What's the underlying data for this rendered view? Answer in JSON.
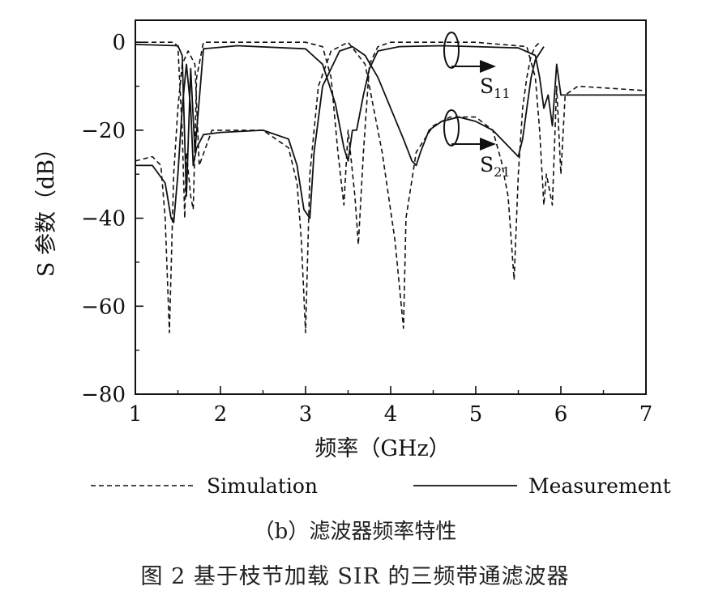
{
  "chart_data": {
    "type": "line",
    "xlabel": "频率（GHz）",
    "ylabel": "S 参数（dB）",
    "xlim": [
      1,
      7
    ],
    "ylim": [
      -80,
      5
    ],
    "xticks": [
      1,
      2,
      3,
      4,
      5,
      6,
      7
    ],
    "yticks": [
      0,
      -20,
      -40,
      -60,
      -80
    ],
    "grid": false,
    "legend_position": "bottom",
    "legend": [
      {
        "label": "Simulation",
        "style": "dashed"
      },
      {
        "label": "Measurement",
        "style": "solid"
      }
    ],
    "annotations": [
      {
        "text": "S",
        "sub": "11",
        "target": "S11"
      },
      {
        "text": "S",
        "sub": "21",
        "target": "S21"
      }
    ],
    "series": [
      {
        "name": "S11 Simulation",
        "style": "dashed",
        "x": [
          1.0,
          1.45,
          1.5,
          1.55,
          1.58,
          1.6,
          1.65,
          1.68,
          1.72,
          1.8,
          2.2,
          3.0,
          3.2,
          3.3,
          3.38,
          3.45,
          3.5,
          3.58,
          3.62,
          3.68,
          3.75,
          3.85,
          4.0,
          5.0,
          5.6,
          5.7,
          5.75,
          5.8,
          5.83,
          5.9,
          5.95,
          6.0,
          6.05,
          6.2,
          7.0
        ],
        "y": [
          0,
          0,
          -1,
          -20,
          -40,
          -25,
          -35,
          -38,
          -8,
          0,
          0,
          0,
          -1,
          -8,
          -25,
          -37,
          -20,
          -35,
          -46,
          -25,
          -5,
          -1,
          0,
          0,
          -1,
          -8,
          -20,
          -37,
          -30,
          -37,
          -10,
          -30,
          -12,
          -10,
          -11
        ]
      },
      {
        "name": "S11 Measurement",
        "style": "solid",
        "x": [
          1.0,
          1.5,
          1.55,
          1.6,
          1.65,
          1.7,
          1.8,
          2.2,
          3.0,
          3.2,
          3.35,
          3.45,
          3.5,
          3.55,
          3.6,
          3.68,
          3.75,
          3.85,
          4.1,
          4.6,
          5.0,
          5.5,
          5.7,
          5.75,
          5.8,
          5.85,
          5.9,
          5.95,
          6.0,
          6.2,
          7.0
        ],
        "y": [
          -0.5,
          -0.8,
          -3,
          -35,
          -6,
          -25,
          -1.5,
          -0.8,
          -1.5,
          -5,
          -14,
          -24,
          -27,
          -20,
          -20,
          -12,
          -6,
          -2,
          -1,
          -0.8,
          -1,
          -1.3,
          -3,
          -8,
          -15,
          -12,
          -19,
          -5,
          -12,
          -12,
          -12
        ]
      },
      {
        "name": "S21 Simulation",
        "style": "dashed",
        "x": [
          1.0,
          1.2,
          1.3,
          1.35,
          1.4,
          1.45,
          1.5,
          1.55,
          1.62,
          1.7,
          1.75,
          1.9,
          2.2,
          2.5,
          2.8,
          2.9,
          2.95,
          3.0,
          3.05,
          3.15,
          3.3,
          3.5,
          3.7,
          3.9,
          4.05,
          4.15,
          4.18,
          4.3,
          4.5,
          4.7,
          5.0,
          5.2,
          5.3,
          5.38,
          5.45,
          5.5,
          5.55,
          5.6,
          5.65,
          5.7,
          5.75
        ],
        "y": [
          -27,
          -26,
          -28,
          -40,
          -66,
          -30,
          -15,
          -5,
          -2,
          -5,
          -28,
          -20,
          -20,
          -20,
          -24,
          -32,
          -45,
          -66,
          -30,
          -10,
          -2,
          0,
          -5,
          -25,
          -45,
          -65,
          -40,
          -25,
          -19,
          -17,
          -17,
          -20,
          -27,
          -35,
          -54,
          -30,
          -15,
          -8,
          -3,
          -1,
          0
        ]
      },
      {
        "name": "S21 Measurement",
        "style": "solid",
        "x": [
          1.0,
          1.2,
          1.35,
          1.42,
          1.45,
          1.5,
          1.55,
          1.6,
          1.65,
          1.68,
          1.72,
          1.8,
          2.0,
          2.5,
          2.8,
          2.9,
          2.98,
          3.05,
          3.1,
          3.2,
          3.4,
          3.55,
          3.7,
          3.85,
          4.0,
          4.15,
          4.25,
          4.3,
          4.35,
          4.45,
          4.6,
          4.8,
          5.0,
          5.2,
          5.4,
          5.5,
          5.55,
          5.6,
          5.65,
          5.7,
          5.8
        ],
        "y": [
          -28,
          -28,
          -32,
          -40,
          -41,
          -30,
          -15,
          -5,
          -15,
          -28,
          -24,
          -21,
          -20.5,
          -20,
          -22,
          -28,
          -38,
          -40,
          -25,
          -10,
          -2,
          -1,
          -3,
          -8,
          -15,
          -22,
          -27,
          -28,
          -25,
          -20,
          -18,
          -17,
          -18,
          -20,
          -24,
          -26,
          -22,
          -15,
          -8,
          -4,
          -1
        ]
      }
    ]
  },
  "captions": {
    "panel": "（b）滤波器频率特性",
    "figure": "图 2   基于枝节加载 SIR 的三频带通滤波器"
  }
}
